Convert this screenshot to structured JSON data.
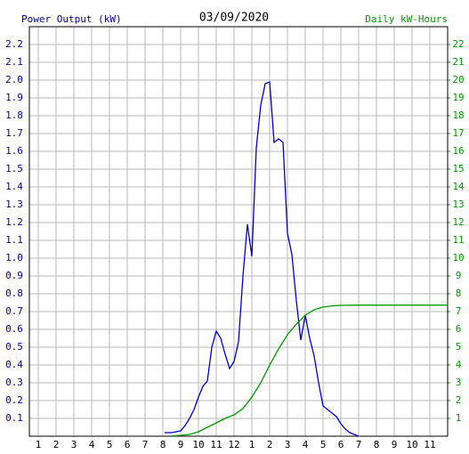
{
  "chart_data": {
    "type": "line",
    "title": "03/09/2020",
    "y_label": "Power Output (kW)",
    "y2_label": "Daily kW-Hours",
    "xlim": [
      0.5,
      24
    ],
    "xticks": [
      1,
      2,
      3,
      4,
      5,
      6,
      7,
      8,
      9,
      10,
      11,
      12,
      {
        "value": 13,
        "label": "1"
      },
      {
        "value": 14,
        "label": "2"
      },
      {
        "value": 15,
        "label": "3"
      },
      {
        "value": 16,
        "label": "4"
      },
      {
        "value": 17,
        "label": "5"
      },
      {
        "value": 18,
        "label": "6"
      },
      {
        "value": 19,
        "label": "7"
      },
      {
        "value": 20,
        "label": "8"
      },
      {
        "value": 21,
        "label": "9"
      },
      {
        "value": 22,
        "label": "10"
      },
      {
        "value": 23,
        "label": "11"
      }
    ],
    "ylim": [
      0,
      2.3
    ],
    "yticks": [
      0.1,
      0.2,
      0.3,
      0.4,
      0.5,
      0.6,
      0.7,
      0.8,
      0.9,
      {
        "value": 1.0,
        "label": "1.0"
      },
      1.1,
      1.2,
      1.3,
      1.4,
      1.5,
      1.6,
      1.7,
      1.8,
      1.9,
      {
        "value": 2.0,
        "label": "2.0"
      },
      2.1,
      2.2
    ],
    "y2lim": [
      0,
      23
    ],
    "y2ticks": [
      1,
      2,
      3,
      4,
      5,
      6,
      7,
      8,
      9,
      10,
      11,
      12,
      13,
      14,
      15,
      16,
      17,
      18,
      19,
      20,
      21,
      22
    ],
    "grid": true,
    "series": [
      {
        "name": "Power Output (kW)",
        "color": "#0000cc",
        "x": [
          8.1,
          8.5,
          9.0,
          9.25,
          9.5,
          9.75,
          10.0,
          10.25,
          10.5,
          10.75,
          11.0,
          11.25,
          11.5,
          11.75,
          12.0,
          12.25,
          12.5,
          12.75,
          13.0,
          13.25,
          13.5,
          13.75,
          14.0,
          14.25,
          14.5,
          14.75,
          15.0,
          15.25,
          15.5,
          15.75,
          16.0,
          16.25,
          16.5,
          16.75,
          17.0,
          17.25,
          17.5,
          17.75,
          18.0,
          18.25,
          18.5,
          18.75,
          19.0
        ],
        "values": [
          0.02,
          0.02,
          0.03,
          0.06,
          0.1,
          0.15,
          0.22,
          0.28,
          0.31,
          0.5,
          0.59,
          0.55,
          0.46,
          0.38,
          0.42,
          0.53,
          0.9,
          1.19,
          1.01,
          1.62,
          1.86,
          1.98,
          1.99,
          1.65,
          1.67,
          1.65,
          1.14,
          1.02,
          0.76,
          0.54,
          0.68,
          0.55,
          0.45,
          0.3,
          0.17,
          0.15,
          0.13,
          0.11,
          0.07,
          0.04,
          0.02,
          0.01,
          0.0
        ]
      },
      {
        "name": "Daily kW-Hours",
        "color": "#009900",
        "axis": "y2",
        "x": [
          8.5,
          9.0,
          9.5,
          10.0,
          10.5,
          11.0,
          11.5,
          12.0,
          12.5,
          13.0,
          13.5,
          14.0,
          14.5,
          15.0,
          15.5,
          16.0,
          16.5,
          17.0,
          17.5,
          18.0,
          19.0,
          24.0
        ],
        "values": [
          0.02,
          0.05,
          0.1,
          0.25,
          0.5,
          0.75,
          1.0,
          1.2,
          1.55,
          2.2,
          3.0,
          4.0,
          4.9,
          5.7,
          6.3,
          6.8,
          7.1,
          7.25,
          7.32,
          7.35,
          7.36,
          7.36
        ]
      }
    ]
  }
}
